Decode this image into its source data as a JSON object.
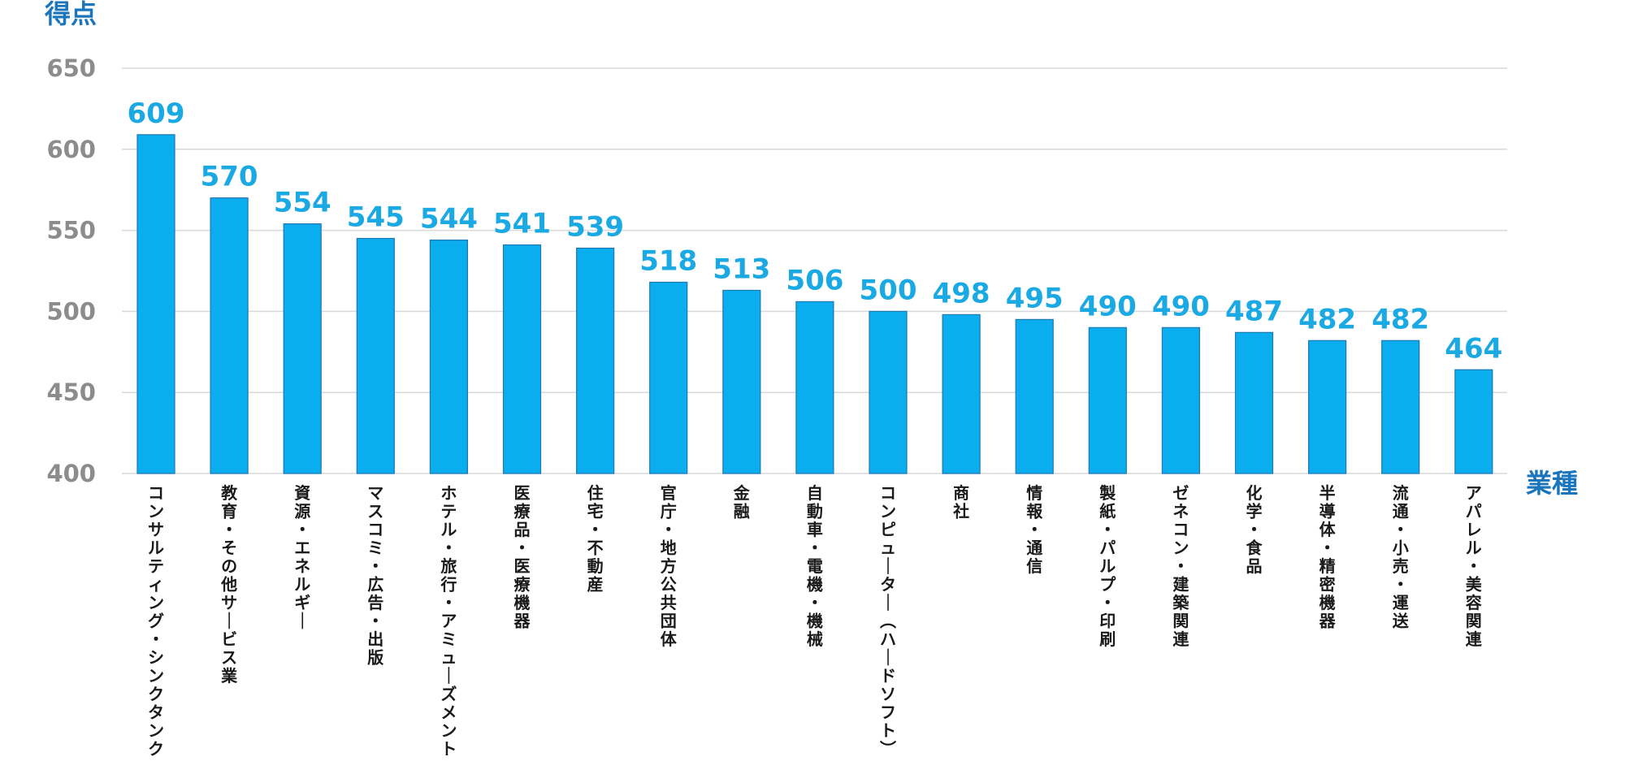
{
  "colors": {
    "bar": "#0aaeee",
    "bar_stroke": "#1f77b4",
    "value_label": "#1ba9e3",
    "axis_title": "#1a75bc",
    "tick_label": "#8c8c8c",
    "category_label": "#1a1a1a",
    "gridline": "#d9d9d9"
  },
  "chart_data": {
    "type": "bar",
    "ylabel": "得点",
    "xlabel": "業種",
    "ylim": [
      400,
      650
    ],
    "yticks": [
      400,
      450,
      500,
      550,
      600,
      650
    ],
    "grid": true,
    "categories": [
      "コンサルティング・シンクタンク",
      "教育・その他サービス業",
      "資源・エネルギー",
      "マスコミ・広告・出版",
      "ホテル・旅行・アミューズメント",
      "医療品・医療機器",
      "住宅・不動産",
      "官庁・地方公共団体",
      "金融",
      "自動車・電機・機械",
      "コンピューター(ハードソフト)",
      "商社",
      "情報・通信",
      "製紙・パルプ・印刷",
      "ゼネコン・建築関連",
      "化学・食品",
      "半導体・精密機器",
      "流通・小売・運送",
      "アパレル・美容関連"
    ],
    "values": [
      609,
      570,
      554,
      545,
      544,
      541,
      539,
      518,
      513,
      506,
      500,
      498,
      495,
      490,
      490,
      487,
      482,
      482,
      464
    ]
  }
}
